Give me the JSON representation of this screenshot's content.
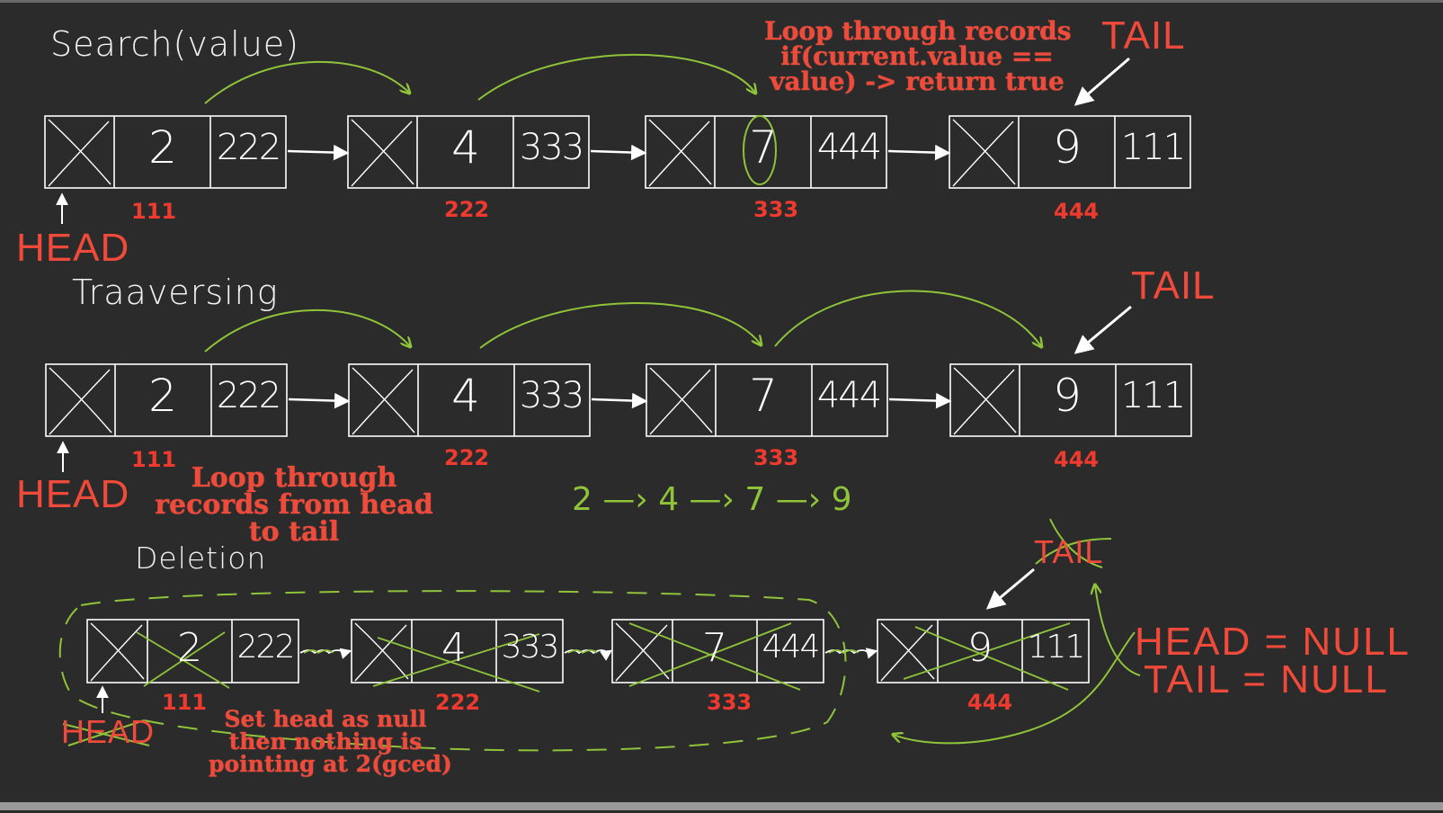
{
  "sections": {
    "search": {
      "title": "Search(value)",
      "note": [
        "Loop through records",
        "if(current.value ==",
        "value) -> return true"
      ],
      "head_label": "HEAD",
      "tail_label": "TAIL"
    },
    "traverse": {
      "title": "Traaversing",
      "note": [
        "Loop through",
        "records from head",
        "to tail"
      ],
      "order": "2 —› 4 —› 7 —› 9",
      "head_label": "HEAD",
      "tail_label": "TAIL"
    },
    "deletion": {
      "title": "Deletion",
      "note": [
        "Set head as null",
        "then nothing is",
        "pointing at 2(gced)"
      ],
      "head_label": "HEAD",
      "tail_label": "TAIL",
      "result": [
        "HEAD = NULL",
        "TAIL = NULL"
      ]
    }
  },
  "nodes": [
    {
      "value": "2",
      "next": "222",
      "address": "111"
    },
    {
      "value": "4",
      "next": "333",
      "address": "222"
    },
    {
      "value": "7",
      "next": "444",
      "address": "333"
    },
    {
      "value": "9",
      "next": "111",
      "address": "444"
    }
  ],
  "colors": {
    "background": "#2b2b2b",
    "node_stroke": "#ffffff",
    "annotation_red": "#ef4a3a",
    "arc_green": "#8fc43a"
  }
}
